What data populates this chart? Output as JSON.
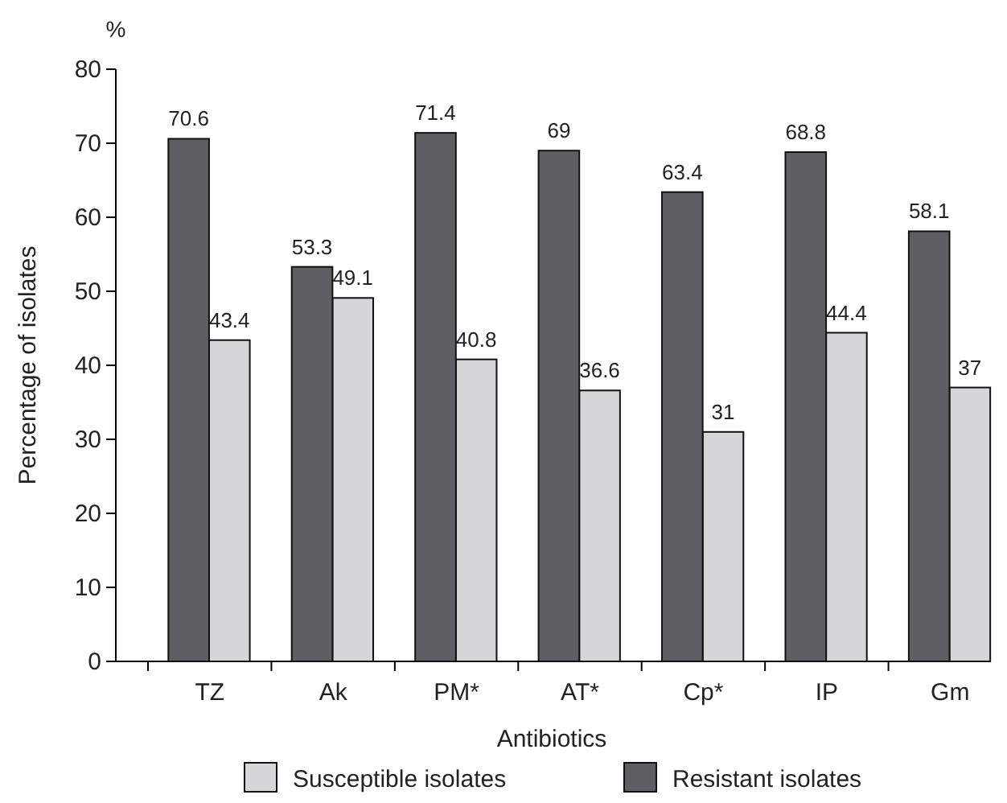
{
  "chart_data": {
    "type": "bar",
    "ylabel": "Percentage of isolates",
    "xlabel": "Antibiotics",
    "annotations": [
      "%"
    ],
    "categories": [
      "TZ",
      "Ak",
      "PM*",
      "AT*",
      "Cp*",
      "IP",
      "Gm"
    ],
    "series": [
      {
        "name": "Susceptible isolates",
        "color": "#d5d6d8",
        "values": [
          43.4,
          49.1,
          40.8,
          36.6,
          31,
          44.4,
          37
        ]
      },
      {
        "name": "Resistant isolates",
        "color": "#5e5f62",
        "values": [
          70.6,
          53.3,
          71.4,
          69,
          63.4,
          68.8,
          58.1
        ]
      }
    ],
    "ylim": [
      0,
      80
    ],
    "yticks": [
      0,
      10,
      20,
      30,
      40,
      50,
      60,
      70,
      80
    ],
    "data_labels": true,
    "legend": "bottom",
    "grid": false
  }
}
